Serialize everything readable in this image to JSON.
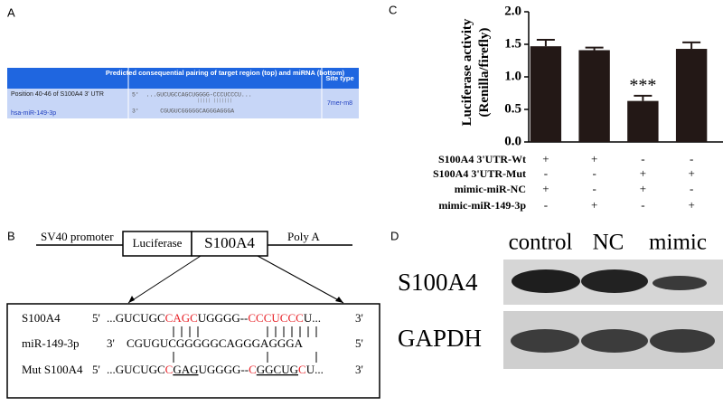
{
  "panel_a": {
    "label": "A",
    "table": {
      "header": [
        "Predicted consequential pairing of target region (top) and miRNA (bottom)",
        "Site type"
      ],
      "row": {
        "target": "Position 40-46 of S100A4 3' UTR",
        "mirna": "hsa-miR-149-3p",
        "target_seq": "5'  ...GUCUGCCAGCUGGGG-CCCUCCCU...",
        "mirna_seq": "3'      CGUGUCGGGGGCAGGGAGGGA",
        "site_type": "7mer-m8"
      }
    }
  },
  "panel_b": {
    "label": "B",
    "promoter": "SV40 promoter",
    "luciferase": "Luciferase",
    "gene": "S100A4",
    "polya": "Poly A",
    "rows": [
      {
        "label": "S100A4",
        "left": "5'",
        "right": "3'",
        "segments": [
          {
            "text": "...GUCUGC"
          },
          {
            "text": "CAGC",
            "color": "#e8242a"
          },
          {
            "text": "UGGGG--"
          },
          {
            "text": "CCCUCCC",
            "color": "#e8242a"
          },
          {
            "text": "U..."
          }
        ]
      },
      {
        "label": "miR-149-3p",
        "left": "3'",
        "right": "5'",
        "segments": [
          {
            "text": "CGUGUCGGGGGCAGGGAGGGA"
          }
        ]
      },
      {
        "label": "Mut S100A4",
        "left": "5'",
        "right": "3'",
        "segments": [
          {
            "text": "...GUCUGC"
          },
          {
            "text": "C",
            "color": "#e8242a"
          },
          {
            "text": "GAG",
            "underline": true
          },
          {
            "text": "UGGGG--"
          },
          {
            "text": "C",
            "color": "#e8242a"
          },
          {
            "text": "GGCUG",
            "underline": true
          },
          {
            "text": "C",
            "color": "#e8242a"
          },
          {
            "text": "U..."
          }
        ]
      }
    ]
  },
  "chart_data": {
    "type": "bar",
    "label": "C",
    "y_label": [
      "Luciferase activity",
      "(Renilla/firefly)"
    ],
    "values": [
      1.47,
      1.41,
      0.63,
      1.43
    ],
    "errors": [
      0.1,
      0.04,
      0.08,
      0.1
    ],
    "color": "#231816",
    "ylim": [
      0,
      2
    ],
    "yticks": [
      {
        "value": 0,
        "label": "0.0"
      },
      {
        "value": 0.5,
        "label": "0.5"
      },
      {
        "value": 1,
        "label": "1.0"
      },
      {
        "value": 1.5,
        "label": "1.5"
      },
      {
        "value": 2,
        "label": "2.0"
      }
    ],
    "annotations": [
      {
        "index": 2,
        "text": "***"
      }
    ],
    "conditions": [
      {
        "label": "S100A4 3'UTR-Wt",
        "marks": [
          "+",
          "+",
          "-",
          "-"
        ]
      },
      {
        "label": "S100A4 3'UTR-Mut",
        "marks": [
          "-",
          "-",
          "+",
          "+"
        ]
      },
      {
        "label": "mimic-miR-NC",
        "marks": [
          "+",
          "-",
          "+",
          "-"
        ]
      },
      {
        "label": "mimic-miR-149-3p",
        "marks": [
          "-",
          "+",
          "-",
          "+"
        ]
      }
    ]
  },
  "panel_d": {
    "label": "D",
    "lanes": [
      "control",
      "NC",
      "mimic"
    ],
    "proteins": [
      "S100A4",
      "GAPDH"
    ]
  }
}
